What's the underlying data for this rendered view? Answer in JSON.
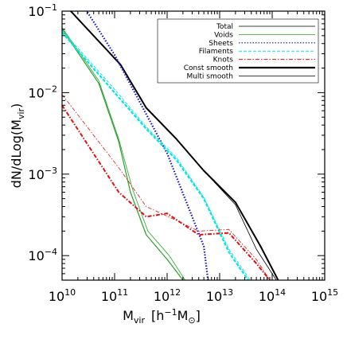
{
  "chart_data": {
    "type": "line",
    "title": "",
    "xlabel": {
      "base": "M",
      "sub": "vir",
      "unit_open": "[h",
      "unit_exp": "−1",
      "unit_m": "M",
      "unit_sub": "⊙",
      "unit_close": "]"
    },
    "ylabel": {
      "main": "dN/dLog(M",
      "sub": "vir",
      "close": ")"
    },
    "x_scale": "log",
    "y_scale": "log",
    "xlim": [
      10000000000.0,
      1000000000000000.0
    ],
    "ylim": [
      5e-05,
      0.1
    ],
    "x_ticks": [
      {
        "value": 10000000000.0,
        "base": "10",
        "exp": "10"
      },
      {
        "value": 100000000000.0,
        "base": "10",
        "exp": "11"
      },
      {
        "value": 1000000000000.0,
        "base": "10",
        "exp": "12"
      },
      {
        "value": 10000000000000.0,
        "base": "10",
        "exp": "13"
      },
      {
        "value": 100000000000000.0,
        "base": "10",
        "exp": "14"
      },
      {
        "value": 1000000000000000.0,
        "base": "10",
        "exp": "15"
      }
    ],
    "y_ticks": [
      {
        "value": 0.0001,
        "base": "10",
        "exp": "−4"
      },
      {
        "value": 0.001,
        "base": "10",
        "exp": "−3"
      },
      {
        "value": 0.01,
        "base": "10",
        "exp": "−2"
      },
      {
        "value": 0.1,
        "base": "10",
        "exp": "−1"
      }
    ],
    "legend_position": "top-right",
    "legend": [
      {
        "label": "Total",
        "color": "#000000",
        "dash": "solid",
        "width": 0.8
      },
      {
        "label": "Voids",
        "color": "#2ca02c",
        "dash": "solid",
        "width": 0.8
      },
      {
        "label": "Sheets",
        "color": "#1010c8",
        "dash": "dotted",
        "width": 1.2
      },
      {
        "label": "Filaments",
        "color": "#00e5e5",
        "dash": "dashed",
        "width": 1.0
      },
      {
        "label": "Knots",
        "color": "#e01010",
        "dash": "dashdot",
        "width": 1.0
      },
      {
        "label": "Const smooth",
        "color": "#000000",
        "dash": "solid",
        "width": 2.2
      },
      {
        "label": "Multi smooth",
        "color": "#000000",
        "dash": "solid",
        "width": 0.7
      }
    ],
    "series": [
      {
        "key": "total_const",
        "color": "#000000",
        "style": "solid",
        "width": 2.0,
        "x": [
          10000000000.0,
          130000000000.0,
          400000000000.0,
          1500000000000.0,
          5000000000000.0,
          20000000000000.0,
          60000000000000.0,
          130000000000000.0
        ],
        "y": [
          0.13,
          0.022,
          0.0065,
          0.0027,
          0.0011,
          0.00045,
          0.00013,
          5e-05
        ]
      },
      {
        "key": "total_multi",
        "color": "#000000",
        "style": "solid",
        "width": 0.8,
        "x": [
          10000000000.0,
          130000000000.0,
          400000000000.0,
          1500000000000.0,
          5000000000000.0,
          20000000000000.0,
          50000000000000.0,
          120000000000000.0
        ],
        "y": [
          0.13,
          0.022,
          0.0065,
          0.0027,
          0.0011,
          0.00042,
          0.00012,
          5e-05
        ]
      },
      {
        "key": "voids_const",
        "color": "#2ca02c",
        "style": "solid",
        "width": 1.2,
        "x": [
          10000000000.0,
          50000000000.0,
          120000000000.0,
          200000000000.0,
          400000000000.0,
          1000000000000.0,
          2000000000000.0
        ],
        "y": [
          0.06,
          0.013,
          0.0025,
          0.0006,
          0.00018,
          9e-05,
          5e-05
        ]
      },
      {
        "key": "voids_multi",
        "color": "#2ca02c",
        "style": "solid",
        "width": 0.8,
        "x": [
          10000000000.0,
          50000000000.0,
          120000000000.0,
          220000000000.0,
          430000000000.0,
          1100000000000.0,
          2200000000000.0
        ],
        "y": [
          0.063,
          0.014,
          0.0027,
          0.00065,
          0.0002,
          0.0001,
          5e-05
        ]
      },
      {
        "key": "sheets_const",
        "color": "#1010c8",
        "style": "dotted",
        "width": 2.2,
        "x": [
          10000000000.0,
          100000000000.0,
          1000000000000.0,
          5000000000000.0,
          6000000000000.0
        ],
        "y": [
          0.3,
          0.029,
          0.0018,
          0.00013,
          5e-05
        ]
      },
      {
        "key": "filaments_const",
        "color": "#00e5e5",
        "style": "dashed",
        "width": 2.2,
        "x": [
          10000000000.0,
          100000000000.0,
          400000000000.0,
          1500000000000.0,
          5000000000000.0,
          15000000000000.0,
          35000000000000.0
        ],
        "y": [
          0.055,
          0.01,
          0.0036,
          0.0015,
          0.0005,
          0.00011,
          5e-05
        ]
      },
      {
        "key": "filaments_multi",
        "color": "#00e5e5",
        "style": "dashed",
        "width": 0.9,
        "x": [
          10000000000.0,
          100000000000.0,
          400000000000.0,
          1500000000000.0,
          5000000000000.0,
          15000000000000.0,
          38000000000000.0
        ],
        "y": [
          0.058,
          0.011,
          0.0038,
          0.0016,
          0.00052,
          0.00012,
          5e-05
        ]
      },
      {
        "key": "knots_const",
        "color": "#e01010",
        "style": "dashdot",
        "width": 2.0,
        "x": [
          10000000000.0,
          120000000000.0,
          400000000000.0,
          1000000000000.0,
          4000000000000.0,
          15000000000000.0,
          50000000000000.0,
          90000000000000.0
        ],
        "y": [
          0.007,
          0.0006,
          0.0003,
          0.00033,
          0.00018,
          0.00019,
          8e-05,
          5e-05
        ]
      },
      {
        "key": "knots_multi",
        "color": "#e01010",
        "style": "dashdot",
        "width": 0.8,
        "x": [
          10000000000.0,
          120000000000.0,
          400000000000.0,
          1500000000000.0,
          4000000000000.0,
          15000000000000.0,
          50000000000000.0,
          90000000000000.0
        ],
        "y": [
          0.0095,
          0.0012,
          0.0004,
          0.00027,
          0.0002,
          0.00021,
          9e-05,
          5e-05
        ]
      }
    ]
  }
}
